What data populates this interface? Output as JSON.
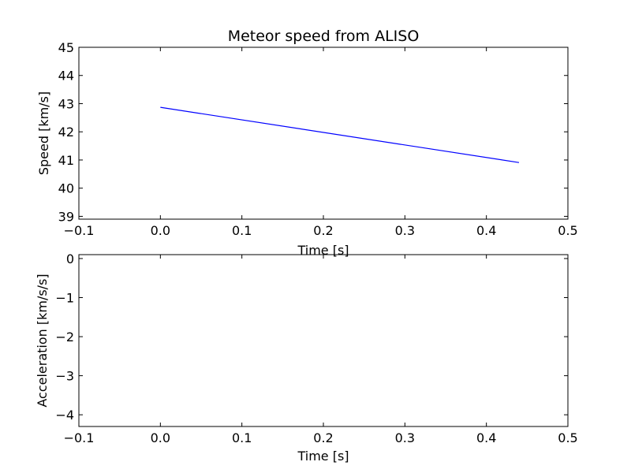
{
  "figure": {
    "background": "#ffffff"
  },
  "chart_data": [
    {
      "type": "line",
      "title": "Meteor speed from  ALISO",
      "xlabel": "Time [s]",
      "ylabel": "Speed [km/s]",
      "xlim": [
        -0.1,
        0.5
      ],
      "ylim": [
        38.9,
        45
      ],
      "xticks": [
        -0.1,
        0.0,
        0.1,
        0.2,
        0.3,
        0.4,
        0.5
      ],
      "xtick_labels": [
        "−0.1",
        "0.0",
        "0.1",
        "0.2",
        "0.3",
        "0.4",
        "0.5"
      ],
      "yticks": [
        39,
        40,
        41,
        42,
        43,
        44,
        45
      ],
      "ytick_labels": [
        "39",
        "40",
        "41",
        "42",
        "43",
        "44",
        "45"
      ],
      "grid": false,
      "series": [
        {
          "color": "#0000ff",
          "x": [
            0.0,
            0.44
          ],
          "y": [
            42.87,
            40.91
          ]
        }
      ]
    },
    {
      "type": "line",
      "title": "",
      "xlabel": "Time [s]",
      "ylabel": "Acceleration [km/s/s]",
      "xlim": [
        -0.1,
        0.5
      ],
      "ylim": [
        -4.3,
        0.1
      ],
      "xticks": [
        -0.1,
        0.0,
        0.1,
        0.2,
        0.3,
        0.4,
        0.5
      ],
      "xtick_labels": [
        "−0.1",
        "0.0",
        "0.1",
        "0.2",
        "0.3",
        "0.4",
        "0.5"
      ],
      "yticks": [
        0,
        -1,
        -2,
        -3,
        -4
      ],
      "ytick_labels": [
        "0",
        "−1",
        "−2",
        "−3",
        "−4"
      ],
      "grid": false,
      "series": []
    }
  ]
}
